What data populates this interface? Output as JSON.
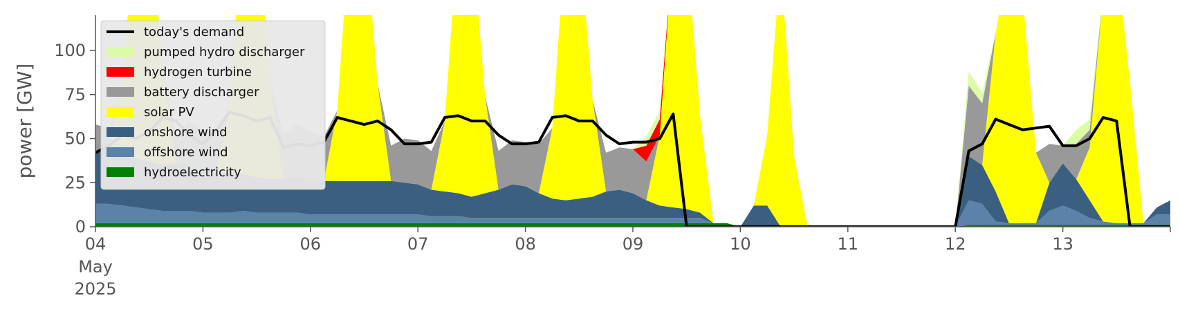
{
  "chart_data": {
    "type": "area",
    "title": "",
    "xlabel": "",
    "ylabel": "power [GW]",
    "xlim": [
      "2025-05-04",
      "2025-05-14"
    ],
    "ylim": [
      0,
      120
    ],
    "yticks": [
      0,
      25,
      50,
      75,
      100
    ],
    "xticks": [
      {
        "date": "2025-05-04",
        "label": "04",
        "sub": [
          "May",
          "2025"
        ]
      },
      {
        "date": "2025-05-05",
        "label": "05"
      },
      {
        "date": "2025-05-06",
        "label": "06"
      },
      {
        "date": "2025-05-07",
        "label": "07"
      },
      {
        "date": "2025-05-08",
        "label": "08"
      },
      {
        "date": "2025-05-09",
        "label": "09"
      },
      {
        "date": "2025-05-10",
        "label": "10"
      },
      {
        "date": "2025-05-11",
        "label": "11"
      },
      {
        "date": "2025-05-12",
        "label": "12"
      },
      {
        "date": "2025-05-13",
        "label": "13"
      }
    ],
    "grid": false,
    "legend_position": "top-left",
    "sample_step_hours": 3,
    "x_start": "2025-05-04 00:00",
    "series": [
      {
        "name": "hydroelectricity",
        "color": "#008000",
        "kind": "area",
        "values": [
          2,
          2,
          2,
          2,
          2,
          2,
          2,
          2,
          2,
          2,
          2,
          2,
          2,
          2,
          2,
          2,
          2,
          2,
          2,
          2,
          2,
          2,
          2,
          2,
          2,
          2,
          2,
          2,
          2,
          2,
          2,
          2,
          2,
          2,
          2,
          2,
          2,
          2,
          2,
          2,
          2,
          2,
          2,
          2,
          2,
          2,
          2,
          2,
          0,
          0,
          0,
          0,
          0,
          0,
          0,
          0,
          0,
          0,
          0,
          0,
          0,
          0,
          0,
          0,
          0,
          1,
          1,
          1,
          1,
          1,
          1,
          1,
          1,
          1,
          1,
          1,
          1,
          1,
          1,
          1,
          1
        ]
      },
      {
        "name": "offshore wind",
        "color": "#5b82a8",
        "kind": "area",
        "values": [
          11,
          11,
          10,
          9,
          8,
          7,
          7,
          7,
          6,
          6,
          6,
          7,
          6,
          6,
          6,
          6,
          5,
          5,
          5,
          5,
          5,
          5,
          5,
          5,
          5,
          4,
          4,
          4,
          3,
          3,
          3,
          3,
          3,
          3,
          3,
          3,
          3,
          3,
          3,
          3,
          3,
          3,
          3,
          3,
          3,
          3,
          0,
          0,
          0,
          0,
          0,
          0,
          0,
          0,
          0,
          0,
          0,
          0,
          0,
          0,
          0,
          0,
          0,
          0,
          0,
          14,
          12,
          2,
          1,
          1,
          1,
          8,
          11,
          8,
          4,
          2,
          1,
          1,
          1,
          6,
          6
        ]
      },
      {
        "name": "onshore wind",
        "color": "#3b5f80",
        "kind": "area",
        "values": [
          30,
          30,
          29,
          28,
          27,
          26,
          27,
          26,
          24,
          23,
          22,
          21,
          20,
          19,
          19,
          20,
          19,
          19,
          19,
          19,
          19,
          19,
          19,
          18,
          17,
          15,
          14,
          13,
          12,
          14,
          16,
          19,
          18,
          14,
          11,
          10,
          11,
          12,
          15,
          16,
          14,
          10,
          7,
          6,
          5,
          3,
          0,
          0,
          0,
          12,
          12,
          0,
          0,
          0,
          0,
          0,
          0,
          0,
          0,
          0,
          0,
          0,
          0,
          0,
          0,
          25,
          22,
          17,
          0,
          0,
          0,
          16,
          24,
          18,
          10,
          0,
          0,
          0,
          0,
          4,
          8
        ]
      },
      {
        "name": "solar PV",
        "color": "#ffff00",
        "kind": "area",
        "values": [
          0,
          0,
          40,
          140,
          150,
          55,
          0,
          0,
          0,
          0,
          40,
          150,
          150,
          55,
          0,
          0,
          0,
          0,
          40,
          150,
          150,
          55,
          0,
          0,
          0,
          0,
          40,
          150,
          150,
          55,
          0,
          0,
          0,
          0,
          40,
          150,
          150,
          55,
          0,
          0,
          0,
          0,
          40,
          150,
          150,
          55,
          0,
          0,
          0,
          0,
          40,
          150,
          40,
          0,
          0,
          0,
          0,
          0,
          0,
          0,
          0,
          0,
          0,
          0,
          0,
          0,
          0,
          90,
          150,
          130,
          40,
          0,
          0,
          0,
          30,
          130,
          150,
          80,
          0,
          0,
          0
        ]
      },
      {
        "name": "battery discharger",
        "color": "#999999",
        "kind": "area",
        "values": [
          15,
          13,
          0,
          0,
          0,
          0,
          14,
          25,
          23,
          22,
          0,
          0,
          0,
          0,
          25,
          30,
          28,
          25,
          0,
          0,
          0,
          0,
          20,
          25,
          25,
          22,
          0,
          0,
          0,
          0,
          22,
          25,
          25,
          28,
          0,
          0,
          0,
          0,
          22,
          24,
          25,
          22,
          0,
          0,
          0,
          0,
          0,
          0,
          0,
          0,
          0,
          0,
          0,
          0,
          0,
          0,
          0,
          0,
          0,
          0,
          0,
          0,
          0,
          0,
          0,
          40,
          35,
          0,
          0,
          0,
          0,
          22,
          10,
          20,
          10,
          0,
          0,
          0,
          0,
          0,
          0
        ]
      },
      {
        "name": "hydrogen turbine",
        "color": "#ff0000",
        "kind": "area",
        "values": [
          0,
          0,
          0,
          0,
          0,
          0,
          0,
          0,
          0,
          0,
          0,
          0,
          0,
          0,
          0,
          0,
          0,
          0,
          0,
          0,
          0,
          0,
          0,
          0,
          0,
          0,
          0,
          0,
          0,
          0,
          0,
          0,
          0,
          0,
          0,
          0,
          0,
          0,
          0,
          0,
          0,
          9,
          9,
          0,
          0,
          0,
          0,
          0,
          0,
          0,
          0,
          0,
          0,
          0,
          0,
          0,
          0,
          0,
          0,
          0,
          0,
          0,
          0,
          0,
          0,
          0,
          0,
          0,
          0,
          0,
          0,
          0,
          0,
          0,
          0,
          0,
          0,
          0,
          0,
          0,
          0
        ]
      },
      {
        "name": "pumped hydro discharger",
        "color": "#dcfba6",
        "kind": "area",
        "values": [
          0,
          0,
          0,
          0,
          0,
          0,
          0,
          0,
          0,
          0,
          0,
          0,
          0,
          0,
          0,
          0,
          0,
          0,
          0,
          0,
          0,
          0,
          0,
          0,
          0,
          0,
          0,
          0,
          0,
          0,
          0,
          0,
          0,
          0,
          0,
          0,
          0,
          0,
          0,
          0,
          0,
          5,
          5,
          0,
          0,
          0,
          0,
          0,
          0,
          0,
          0,
          0,
          0,
          0,
          0,
          0,
          0,
          0,
          0,
          0,
          0,
          0,
          0,
          0,
          0,
          8,
          6,
          0,
          0,
          0,
          0,
          0,
          0,
          8,
          6,
          0,
          0,
          0,
          0,
          0,
          0
        ]
      },
      {
        "name": "today's demand",
        "color": "#000000",
        "kind": "line",
        "values": [
          42,
          46,
          52,
          50,
          54,
          62,
          60,
          52,
          47,
          55,
          65,
          63,
          60,
          62,
          45,
          47,
          46,
          48,
          62,
          60,
          58,
          60,
          55,
          47,
          47,
          48,
          62,
          63,
          60,
          60,
          52,
          47,
          47,
          48,
          62,
          63,
          60,
          60,
          52,
          47,
          48,
          48,
          50,
          64,
          0,
          0,
          0,
          0,
          0,
          0,
          0,
          0,
          0,
          0,
          0,
          0,
          0,
          0,
          0,
          0,
          0,
          0,
          0,
          0,
          0,
          43,
          47,
          61,
          58,
          55,
          56,
          57,
          46,
          46,
          50,
          62,
          60,
          0,
          0,
          0,
          0
        ]
      }
    ]
  }
}
